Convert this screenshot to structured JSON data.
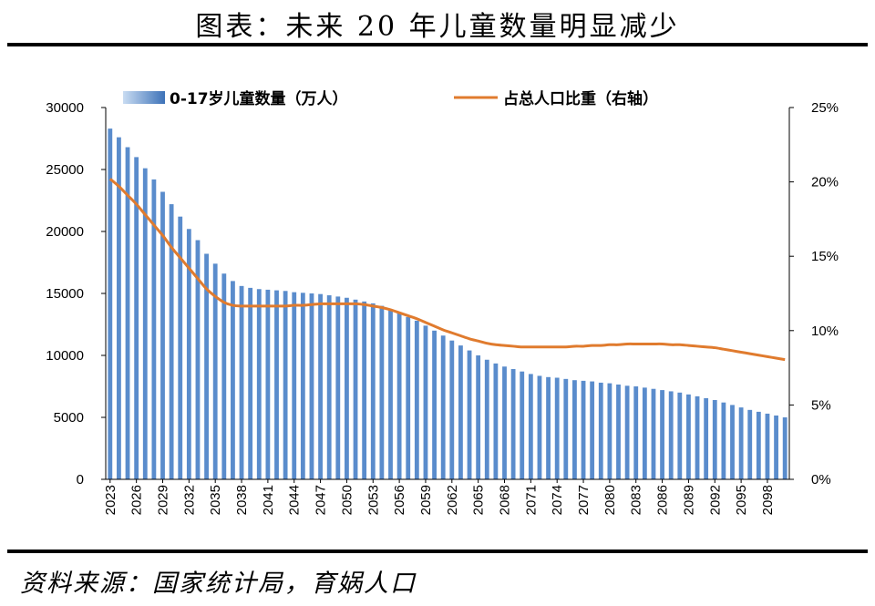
{
  "figure": {
    "title": "图表：未来 20 年儿童数量明显减少",
    "source": "资料来源：国家统计局，育娲人口"
  },
  "colors": {
    "bar": "#5a8ccc",
    "line": "#e07b2e",
    "axis": "#000000"
  },
  "chart_data": {
    "type": "bar",
    "categories": [
      "2023",
      "2024",
      "2025",
      "2026",
      "2027",
      "2028",
      "2029",
      "2030",
      "2031",
      "2032",
      "2033",
      "2034",
      "2035",
      "2036",
      "2037",
      "2038",
      "2039",
      "2040",
      "2041",
      "2042",
      "2043",
      "2044",
      "2045",
      "2046",
      "2047",
      "2048",
      "2049",
      "2050",
      "2051",
      "2052",
      "2053",
      "2054",
      "2055",
      "2056",
      "2057",
      "2058",
      "2059",
      "2060",
      "2061",
      "2062",
      "2063",
      "2064",
      "2065",
      "2066",
      "2067",
      "2068",
      "2069",
      "2070",
      "2071",
      "2072",
      "2073",
      "2074",
      "2075",
      "2076",
      "2077",
      "2078",
      "2079",
      "2080",
      "2081",
      "2082",
      "2083",
      "2084",
      "2085",
      "2086",
      "2087",
      "2088",
      "2089",
      "2090",
      "2091",
      "2092",
      "2093",
      "2094",
      "2095",
      "2096",
      "2097",
      "2098",
      "2099",
      "2100"
    ],
    "xtick_labels": [
      "2023",
      "2026",
      "2029",
      "2032",
      "2035",
      "2038",
      "2041",
      "2044",
      "2047",
      "2050",
      "2053",
      "2056",
      "2059",
      "2062",
      "2065",
      "2068",
      "2071",
      "2074",
      "2077",
      "2080",
      "2083",
      "2086",
      "2089",
      "2092",
      "2095",
      "2098"
    ],
    "series": [
      {
        "name": "0-17岁儿童数量（万人）",
        "axis": "left",
        "values": [
          28300,
          27600,
          26800,
          26000,
          25100,
          24200,
          23200,
          22200,
          21200,
          20200,
          19300,
          18200,
          17400,
          16600,
          16000,
          15600,
          15450,
          15350,
          15300,
          15250,
          15200,
          15100,
          15050,
          15000,
          14950,
          14850,
          14750,
          14650,
          14500,
          14350,
          14200,
          14000,
          13700,
          13400,
          13100,
          12800,
          12400,
          12000,
          11600,
          11200,
          10800,
          10400,
          10000,
          9650,
          9350,
          9100,
          8900,
          8700,
          8500,
          8350,
          8250,
          8200,
          8100,
          8000,
          7950,
          7900,
          7800,
          7750,
          7650,
          7550,
          7500,
          7400,
          7300,
          7200,
          7100,
          7000,
          6850,
          6700,
          6550,
          6400,
          6200,
          6000,
          5800,
          5600,
          5450,
          5300,
          5150,
          5000
        ]
      },
      {
        "name": "占总人口比重（右轴）",
        "axis": "right",
        "values": [
          20.2,
          19.7,
          19.1,
          18.5,
          17.8,
          17.1,
          16.4,
          15.6,
          14.9,
          14.2,
          13.5,
          12.8,
          12.3,
          11.9,
          11.7,
          11.65,
          11.65,
          11.65,
          11.65,
          11.65,
          11.65,
          11.7,
          11.7,
          11.75,
          11.8,
          11.8,
          11.8,
          11.8,
          11.8,
          11.75,
          11.65,
          11.55,
          11.4,
          11.2,
          11.0,
          10.8,
          10.55,
          10.3,
          10.05,
          9.85,
          9.65,
          9.45,
          9.3,
          9.15,
          9.05,
          9.0,
          8.95,
          8.9,
          8.9,
          8.9,
          8.9,
          8.9,
          8.9,
          8.95,
          8.95,
          9.0,
          9.0,
          9.05,
          9.05,
          9.1,
          9.1,
          9.1,
          9.1,
          9.1,
          9.05,
          9.05,
          9.0,
          8.95,
          8.9,
          8.85,
          8.75,
          8.65,
          8.55,
          8.45,
          8.35,
          8.25,
          8.15,
          8.05
        ]
      }
    ],
    "ylim_left": [
      0,
      30000
    ],
    "yticks_left": [
      "0",
      "5000",
      "10000",
      "15000",
      "20000",
      "25000",
      "30000"
    ],
    "ylim_right": [
      0,
      25
    ],
    "yticks_right": [
      "0%",
      "5%",
      "10%",
      "15%",
      "20%",
      "25%"
    ],
    "legend_position": "top",
    "grid": false
  }
}
